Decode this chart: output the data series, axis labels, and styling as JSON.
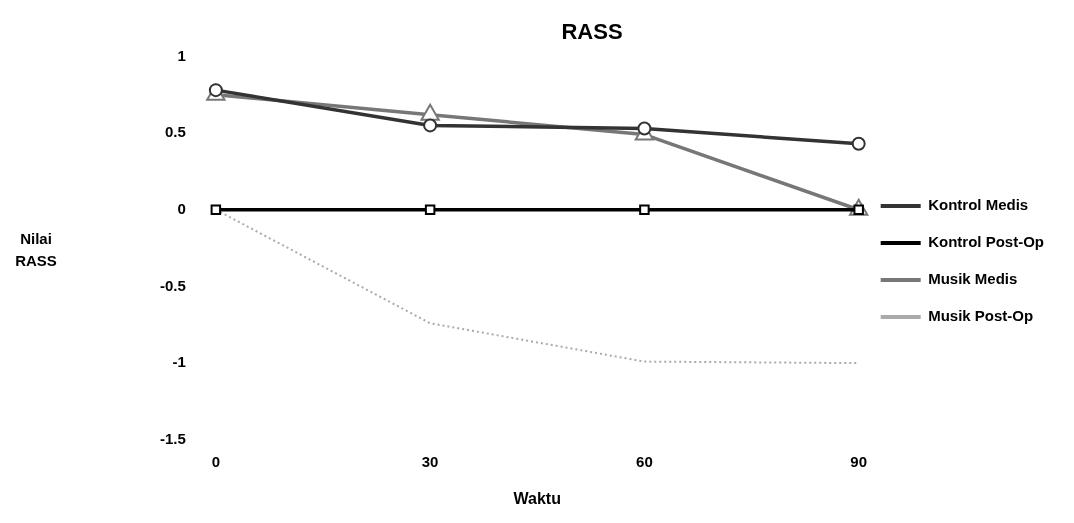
{
  "chart_data": {
    "type": "line",
    "title": "RASS",
    "xlabel": "Waktu",
    "ylabel": "Nilai RASS",
    "categories": [
      "0",
      "30",
      "60",
      "90"
    ],
    "series": [
      {
        "name": "Kontrol Medis",
        "color": "#333333",
        "marker": "circle",
        "values": [
          0.78,
          0.55,
          0.53,
          0.43
        ]
      },
      {
        "name": "Kontrol Post-Op",
        "color": "#000000",
        "marker": "square",
        "values": [
          0,
          0,
          0,
          0
        ]
      },
      {
        "name": "Musik Medis",
        "color": "#777777",
        "marker": "triangle",
        "values": [
          0.75,
          0.62,
          0.49,
          0
        ]
      },
      {
        "name": "Musik Post-Op",
        "color": "#aaaaaa",
        "marker": "none",
        "line_style": "dotted",
        "values": [
          0,
          -0.74,
          -0.99,
          -1
        ]
      }
    ],
    "ylim": [
      -1.5,
      1
    ],
    "yticks": [
      -1.5,
      -1,
      -0.5,
      0,
      0.5,
      1
    ],
    "grid": false,
    "legend": "right"
  }
}
